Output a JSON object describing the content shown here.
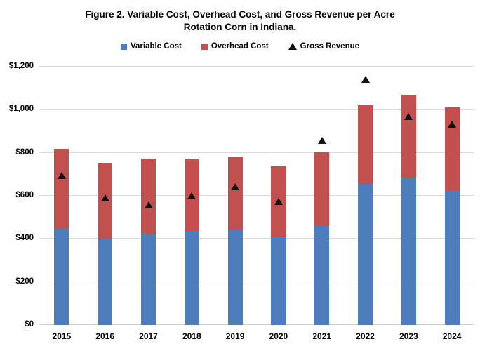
{
  "figure": {
    "title_line1": "Figure 2. Variable Cost, Overhead Cost, and Gross Revenue per Acre",
    "title_line2": "Rotation Corn in Indiana."
  },
  "chart_data": {
    "type": "bar",
    "subtype": "stacked-bars-with-scatter-overlay",
    "title": "Figure 2. Variable Cost, Overhead Cost, and Gross Revenue per Acre Rotation Corn in Indiana.",
    "categories": [
      "2015",
      "2016",
      "2017",
      "2018",
      "2019",
      "2020",
      "2021",
      "2022",
      "2023",
      "2024"
    ],
    "series": [
      {
        "name": "Variable Cost",
        "type": "bar",
        "color": "#4D7EBB",
        "values": [
          450,
          400,
          424,
          437,
          445,
          411,
          461,
          657,
          685,
          624
        ]
      },
      {
        "name": "Overhead Cost",
        "type": "bar",
        "color": "#C2504E",
        "values": [
          370,
          352,
          348,
          331,
          333,
          327,
          340,
          363,
          386,
          387
        ]
      },
      {
        "name": "Gross Revenue",
        "type": "scatter",
        "marker": "triangle",
        "color": "#111111",
        "values": [
          693,
          590,
          558,
          601,
          643,
          574,
          858,
          1142,
          970,
          933
        ]
      }
    ],
    "stacked_totals": [
      820,
      752,
      772,
      768,
      778,
      738,
      801,
      1020,
      1071,
      1011
    ],
    "xlabel": "",
    "ylabel": "",
    "ylim": [
      0,
      1200
    ],
    "ytick_interval": 200,
    "ytick_labels": [
      "$0",
      "$200",
      "$400",
      "$600",
      "$800",
      "$1,000",
      "$1,200"
    ],
    "grid": "horizontal",
    "gridline_color": "#D9D9D9",
    "background_color": "#FFFFFF",
    "legend_position": "top",
    "legend": [
      {
        "label": "Variable Cost",
        "marker": "square",
        "color": "#4D7EBB"
      },
      {
        "label": "Overhead Cost",
        "marker": "square",
        "color": "#C2504E"
      },
      {
        "label": "Gross Revenue",
        "marker": "triangle",
        "color": "#111111"
      }
    ]
  }
}
